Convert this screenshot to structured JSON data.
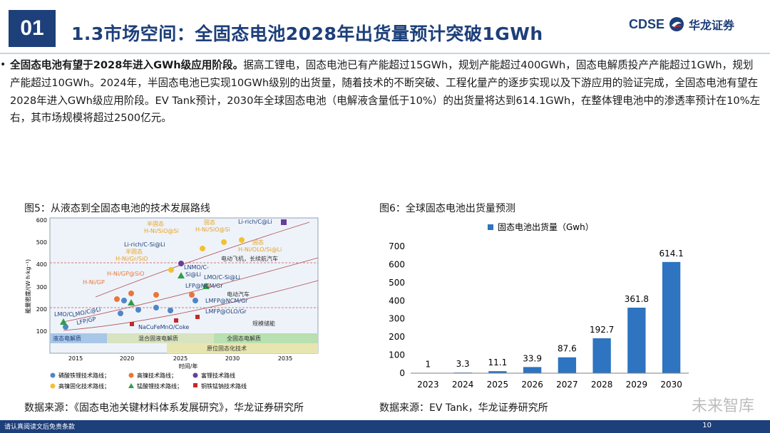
{
  "header": {
    "section_number": "01",
    "title": "1.3市场空间：全固态电池2028年出货量预计突破1GWh",
    "brand_en": "CDSE",
    "brand_cn": "华龙证券"
  },
  "body": {
    "bullet": "•",
    "lead": "全固态电池有望于2028年进入GWh级应用阶段。",
    "text": "据高工锂电，固态电池已有产能超过15GWh，规划产能超过400GWh，固态电解质投产产能超过1GWh，规划产能超过10GWh。2024年，半固态电池已实现10GWh级别的出货量，随着技术的不断突破、工程化量产的逐步实现以及下游应用的验证完成，全固态电池有望在2028年进入GWh级应用阶段。EV Tank预计，2030年全球固态电池（电解液含量低于10%）的出货量将达到614.1GWh，在整体锂电池中的渗透率预计在10%左右，其市场规模将超过2500亿元。"
  },
  "figure5": {
    "title": "图5：从液态到全固态电池的技术发展路线",
    "source": "数据来源：《固态电池关键材料体系发展研究》，华龙证券研究所",
    "ylabel": "能量密度/(W·h·kg⁻¹)",
    "xlabel": "时间/年",
    "y_ticks": [
      "600",
      "500",
      "400",
      "300",
      "200",
      "100"
    ],
    "x_ticks": [
      "2015",
      "2020",
      "2025",
      "2030",
      "2035"
    ],
    "stages": [
      "液态电解质",
      "混合固液电解质",
      "全固态电解质",
      "原位固态化技术"
    ],
    "applications": [
      "电动飞机，长续航汽车",
      "电动汽车",
      "规模储能"
    ],
    "labels": {
      "l1": "LMO/C",
      "l2": "LMO/C@Li",
      "l3": "LFP/GP",
      "l4": "H-Ni/GP",
      "l5": "H-Ni/GP@SiO",
      "l6": "半固态",
      "l7": "H-Ni/Gr/SiO",
      "l8": "Li-rich/C-Si@Li",
      "l9": "半固态",
      "l10": "H-Ni/SiO@Si",
      "l11": "固态",
      "l12": "H-Ni/SiO@Si",
      "l13": "Li-rich/C@Li",
      "l14": "固态",
      "l15": "H-Ni/OLO/Si@Li",
      "l16": "LNMO/C-",
      "l17": "Si@Li",
      "l18": "LMO/C-Si@Li",
      "l19": "LFP@NCM/Gr",
      "l20": "LMFP@NCM/Gr",
      "l21": "LMFP@OLO/Gr",
      "l22": "NaCuFeMnO/Coke"
    },
    "legend": [
      "磷酸铁锂技术路线；",
      "高镍技术路线；",
      "富锂技术路线",
      "高镍固化技术路线；",
      "锰酸锂技术路线；",
      "铜铁锰钠技术路线"
    ],
    "colors": {
      "lfp": "#4f86c6",
      "hni": "#e8763a",
      "lirich": "#6a3d9a",
      "hni_solid": "#f2c12e",
      "lmo": "#2e9e4a",
      "na": "#c62828"
    }
  },
  "figure6": {
    "title": "图6：全球固态电池出货量预测",
    "source": "数据来源：EV Tank，华龙证券研究所"
  },
  "chart_data": {
    "type": "bar",
    "title": "图6：全球固态电池出货量预测",
    "categories": [
      "2023",
      "2024",
      "2025",
      "2026",
      "2027",
      "2028",
      "2029",
      "2030"
    ],
    "series": [
      {
        "name": "固态电池出货量（Gwh）",
        "values": [
          1,
          3.3,
          11.1,
          33.9,
          87.6,
          192.7,
          361.8,
          614.1
        ]
      }
    ],
    "data_labels": [
      "1",
      "3.3",
      "11.1",
      "33.9",
      "87.6",
      "192.7",
      "361.8",
      "614.1"
    ],
    "y_ticks": [
      "0",
      "100",
      "200",
      "300",
      "400",
      "500",
      "600",
      "700"
    ],
    "ylim": [
      0,
      700
    ],
    "legend_position": "top",
    "grid": false,
    "bar_color": "#2e74c0"
  },
  "footer": {
    "left": "请认真阅读文后免责条款",
    "page": "10",
    "watermark": "未来智库"
  }
}
